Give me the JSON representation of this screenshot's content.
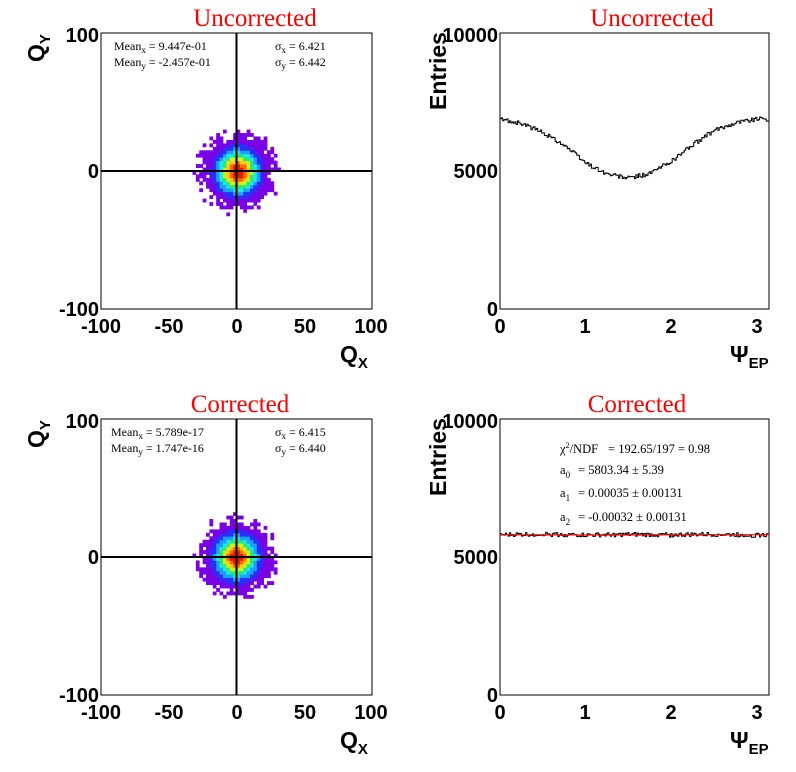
{
  "chart_data": [
    {
      "type": "heatmap",
      "title": "Uncorrected",
      "xlabel": "Q",
      "xlabel_sub": "X",
      "ylabel": "Q",
      "ylabel_sub": "Y",
      "xlim": [
        -100,
        100
      ],
      "ylim": [
        -100,
        100
      ],
      "xticks": [
        "-100",
        "-50",
        "0",
        "50",
        "100"
      ],
      "yticks": [
        "-100",
        "0",
        "100"
      ],
      "crosshair": [
        0,
        0
      ],
      "distribution": {
        "mean_x": 0.9447,
        "mean_y": -0.2457,
        "sigma_x": 6.421,
        "sigma_y": 6.442
      },
      "stats": {
        "mean_x_label": "Mean",
        "mean_x_sub": "x",
        "mean_x_value": "= 9.447e-01",
        "mean_y_label": "Mean",
        "mean_y_sub": "y",
        "mean_y_value": "= -2.457e-01",
        "sigma_x_label": "σ",
        "sigma_x_sub": "x",
        "sigma_x_value": "= 6.421",
        "sigma_y_label": "σ",
        "sigma_y_sub": "y",
        "sigma_y_value": "= 6.442"
      },
      "palette": [
        "#7a00e6",
        "#2d2df7",
        "#1aa0ff",
        "#1ee9e4",
        "#26e87a",
        "#c6f520",
        "#ffc813",
        "#ff6a00",
        "#e81b00"
      ]
    },
    {
      "type": "line",
      "title": "Uncorrected",
      "xlabel": "Ψ",
      "xlabel_sub": "EP",
      "ylabel": "Entries",
      "xlim": [
        0,
        3.1416
      ],
      "ylim": [
        0,
        10000
      ],
      "xticks": [
        "0",
        "1",
        "2",
        "3"
      ],
      "yticks": [
        "0",
        "5000",
        "10000"
      ],
      "line_color": "#000000",
      "series": [
        {
          "x": [
            0.0,
            0.25,
            0.5,
            0.75,
            1.0,
            1.25,
            1.5,
            1.75,
            2.0,
            2.25,
            2.5,
            2.75,
            3.0,
            3.14
          ],
          "values": [
            6880,
            6720,
            6400,
            5950,
            5300,
            4890,
            4740,
            4900,
            5350,
            5950,
            6450,
            6760,
            6890,
            6880
          ]
        }
      ]
    },
    {
      "type": "heatmap",
      "title": "Corrected",
      "xlabel": "Q",
      "xlabel_sub": "X",
      "ylabel": "Q",
      "ylabel_sub": "Y",
      "xlim": [
        -100,
        100
      ],
      "ylim": [
        -100,
        100
      ],
      "xticks": [
        "-100",
        "-50",
        "0",
        "50",
        "100"
      ],
      "yticks": [
        "-100",
        "0",
        "100"
      ],
      "crosshair": [
        0,
        0
      ],
      "distribution": {
        "mean_x": 0.0,
        "mean_y": 0.0,
        "sigma_x": 6.415,
        "sigma_y": 6.44
      },
      "stats": {
        "mean_x_label": "Mean",
        "mean_x_sub": "x",
        "mean_x_value": "= 5.789e-17",
        "mean_y_label": "Mean",
        "mean_y_sub": "y",
        "mean_y_value": "= 1.747e-16",
        "sigma_x_label": "σ",
        "sigma_x_sub": "x",
        "sigma_x_value": "= 6.415",
        "sigma_y_label": "σ",
        "sigma_y_sub": "y",
        "sigma_y_value": "= 6.440"
      },
      "palette": [
        "#7a00e6",
        "#2d2df7",
        "#1aa0ff",
        "#1ee9e4",
        "#26e87a",
        "#c6f520",
        "#ffc813",
        "#ff6a00",
        "#e81b00"
      ]
    },
    {
      "type": "line",
      "title": "Corrected",
      "xlabel": "Ψ",
      "xlabel_sub": "EP",
      "ylabel": "Entries",
      "xlim": [
        0,
        3.1416
      ],
      "ylim": [
        0,
        10000
      ],
      "xticks": [
        "0",
        "1",
        "2",
        "3"
      ],
      "yticks": [
        "0",
        "5000",
        "10000"
      ],
      "line_color": "#000000",
      "fit_color": "#ff0000",
      "series": [
        {
          "x": [
            0.0,
            0.5,
            1.0,
            1.5,
            2.0,
            2.5,
            3.0,
            3.14
          ],
          "values": [
            5800,
            5830,
            5790,
            5810,
            5800,
            5820,
            5790,
            5790
          ]
        }
      ],
      "fit": {
        "a0": 5803.34,
        "a1": 0.00035,
        "a2": -0.00032
      },
      "fit_text": {
        "chi_label": "χ",
        "chi_sup": "2",
        "chi_rest": "/NDF",
        "chi_value": "= 192.65/197  =  0.98",
        "a0_label": "a",
        "a0_sub": "0",
        "a0_value": "= 5803.34 ± 5.39",
        "a1_label": "a",
        "a1_sub": "1",
        "a1_value": "= 0.00035 ± 0.00131",
        "a2_label": "a",
        "a2_sub": "2",
        "a2_value": "= -0.00032 ± 0.00131"
      }
    }
  ]
}
